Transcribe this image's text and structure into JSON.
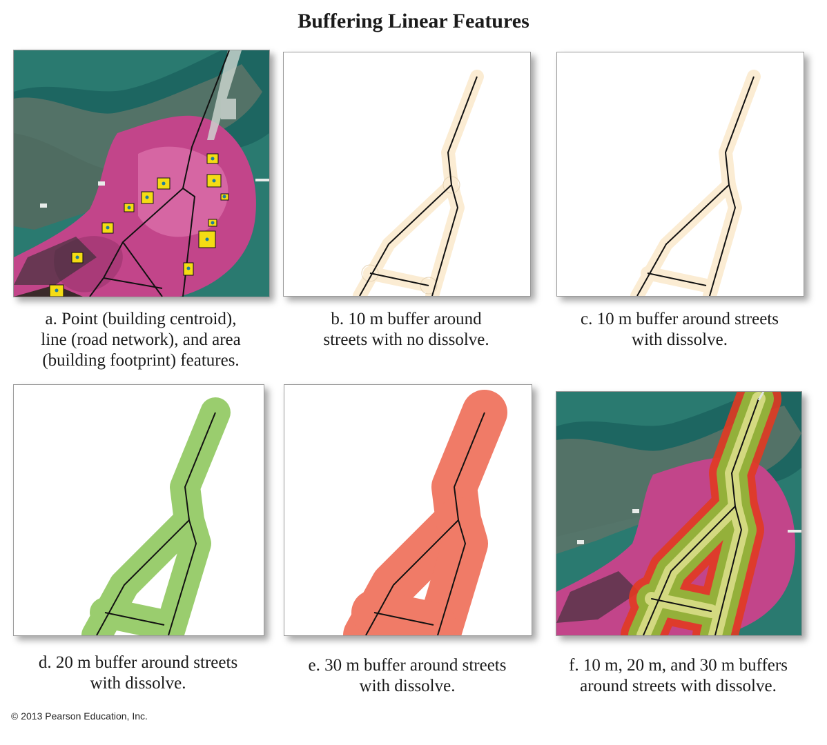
{
  "title": "Buffering Linear Features",
  "panels": [
    {
      "id": "a",
      "caption_lines": [
        "a. Point (building centroid),",
        "line (road network), and area",
        "(building footprint) features."
      ]
    },
    {
      "id": "b",
      "caption_lines": [
        "b. 10 m buffer around",
        "streets with no dissolve."
      ]
    },
    {
      "id": "c",
      "caption_lines": [
        "c. 10 m buffer around streets",
        "with dissolve."
      ]
    },
    {
      "id": "d",
      "caption_lines": [
        "d. 20 m buffer around streets",
        "with dissolve."
      ]
    },
    {
      "id": "e",
      "caption_lines": [
        "e. 30 m buffer around streets",
        "with dissolve."
      ]
    },
    {
      "id": "f",
      "caption_lines": [
        "f. 10 m, 20 m, and 30 m buffers",
        "around streets with dissolve."
      ]
    }
  ],
  "colors": {
    "buffer_10m": "#fbecd3",
    "buffer_20m": "#9acd6e",
    "buffer_30m": "#f07b67",
    "road": "#111111",
    "building": "#f4dc14",
    "vegetation": "#c2458a",
    "water": "#1f6a66"
  },
  "copyright": "© 2013 Pearson Education, Inc."
}
